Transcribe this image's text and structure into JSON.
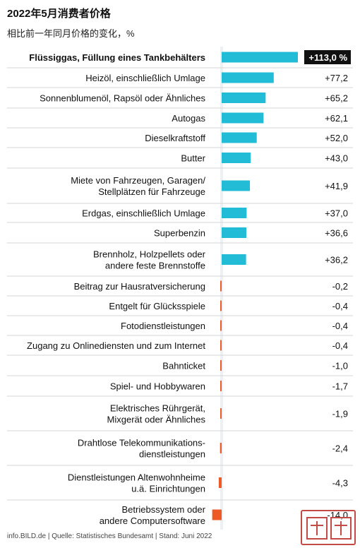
{
  "chart_data": {
    "type": "bar",
    "orientation": "horizontal",
    "title": "2022年5月消费者价格",
    "subtitle": "相比前一年同月价格的变化，%",
    "categories": [
      [
        "Flüssiggas, Füllung eines Tankbehälters"
      ],
      [
        "Heizöl, einschließlich Umlage"
      ],
      [
        "Sonnenblumenöl, Rapsöl oder Ähnliches"
      ],
      [
        "Autogas"
      ],
      [
        "Dieselkraftstoff"
      ],
      [
        "Butter"
      ],
      [
        "Miete von Fahrzeugen, Garagen/",
        "Stellplätzen für Fahrzeuge"
      ],
      [
        "Erdgas, einschließlich Umlage"
      ],
      [
        "Superbenzin"
      ],
      [
        "Brennholz, Holzpellets oder",
        "andere feste Brennstoffe"
      ],
      [
        "Beitrag zur Hausratversicherung"
      ],
      [
        "Entgelt für Glücksspiele"
      ],
      [
        "Fotodienstleistungen"
      ],
      [
        "Zugang zu Onlinediensten und zum Internet"
      ],
      [
        "Bahnticket"
      ],
      [
        "Spiel- und Hobbywaren"
      ],
      [
        "Elektrisches Rührgerät,",
        "Mixgerät oder Ähnliches"
      ],
      [
        "Drahtlose Telekommunikations-",
        "dienstleistungen"
      ],
      [
        "Dienstleistungen Altenwohnheime",
        "u.ä. Einrichtungen"
      ],
      [
        "Betriebssystem oder",
        "andere Computersoftware"
      ]
    ],
    "values": [
      113.0,
      77.2,
      65.2,
      62.1,
      52.0,
      43.0,
      41.9,
      37.0,
      36.6,
      36.2,
      -0.2,
      -0.4,
      -0.4,
      -0.4,
      -1.0,
      -1.7,
      -1.9,
      -2.4,
      -4.3,
      -14.0
    ],
    "value_labels": [
      "+113,0 %",
      "+77,2",
      "+65,2",
      "+62,1",
      "+52,0",
      "+43,0",
      "+41,9",
      "+37,0",
      "+36,6",
      "+36,2",
      "-0,2",
      "-0,4",
      "-0,4",
      "-0,4",
      "-1,0",
      "-1,7",
      "-1,9",
      "-2,4",
      "-4,3",
      "-14,0"
    ],
    "highlight_first": true,
    "colors": {
      "positive": "#22bcd6",
      "negative": "#ee5a26",
      "highlight_bg": "#111111",
      "highlight_text": "#ffffff",
      "separator": "#d6d6d6",
      "axis_band": "#eef1f3"
    }
  },
  "footer": "info.BILD.de | Quelle: Statistisches Bundesamt | Stand: Juni 2022"
}
